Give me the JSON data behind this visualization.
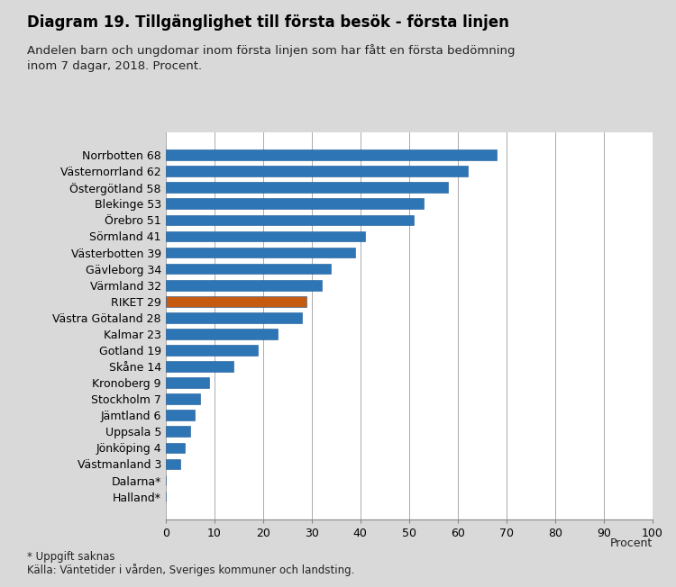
{
  "title": "Diagram 19. Tillgänglighet till första besök - första linjen",
  "subtitle": "Andelen barn och ungdomar inom första linjen som har fått en första bedömning\ninom 7 dagar, 2018. Procent.",
  "footnote1": "* Uppgift saknas",
  "footnote2": "Källa: Väntetider i vården, Sveriges kommuner och landsting.",
  "xlabel": "Procent",
  "xlim": [
    0,
    100
  ],
  "xticks": [
    0,
    10,
    20,
    30,
    40,
    50,
    60,
    70,
    80,
    90,
    100
  ],
  "categories": [
    "Norrbotten 68",
    "Västernorrland 62",
    "Östergötland 58",
    "Blekinge 53",
    "Örebro 51",
    "Sörmland 41",
    "Västerbotten 39",
    "Gävleborg 34",
    "Värmland 32",
    "RIKET 29",
    "Västra Götaland 28",
    "Kalmar 23",
    "Gotland 19",
    "Skåne 14",
    "Kronoberg 9",
    "Stockholm 7",
    "Jämtland 6",
    "Uppsala 5",
    "Jönköping 4",
    "Västmanland 3",
    "Dalarna*",
    "Halland*"
  ],
  "values": [
    68,
    62,
    58,
    53,
    51,
    41,
    39,
    34,
    32,
    29,
    28,
    23,
    19,
    14,
    9,
    7,
    6,
    5,
    4,
    3,
    0,
    0
  ],
  "bar_colors": [
    "#2E75B6",
    "#2E75B6",
    "#2E75B6",
    "#2E75B6",
    "#2E75B6",
    "#2E75B6",
    "#2E75B6",
    "#2E75B6",
    "#2E75B6",
    "#C55A11",
    "#2E75B6",
    "#2E75B6",
    "#2E75B6",
    "#2E75B6",
    "#2E75B6",
    "#2E75B6",
    "#2E75B6",
    "#2E75B6",
    "#2E75B6",
    "#2E75B6",
    "#2E75B6",
    "#2E75B6"
  ],
  "background_color": "#D9D9D9",
  "plot_bg_color": "#FFFFFF",
  "title_fontsize": 12,
  "subtitle_fontsize": 9.5,
  "label_fontsize": 9,
  "tick_fontsize": 9
}
